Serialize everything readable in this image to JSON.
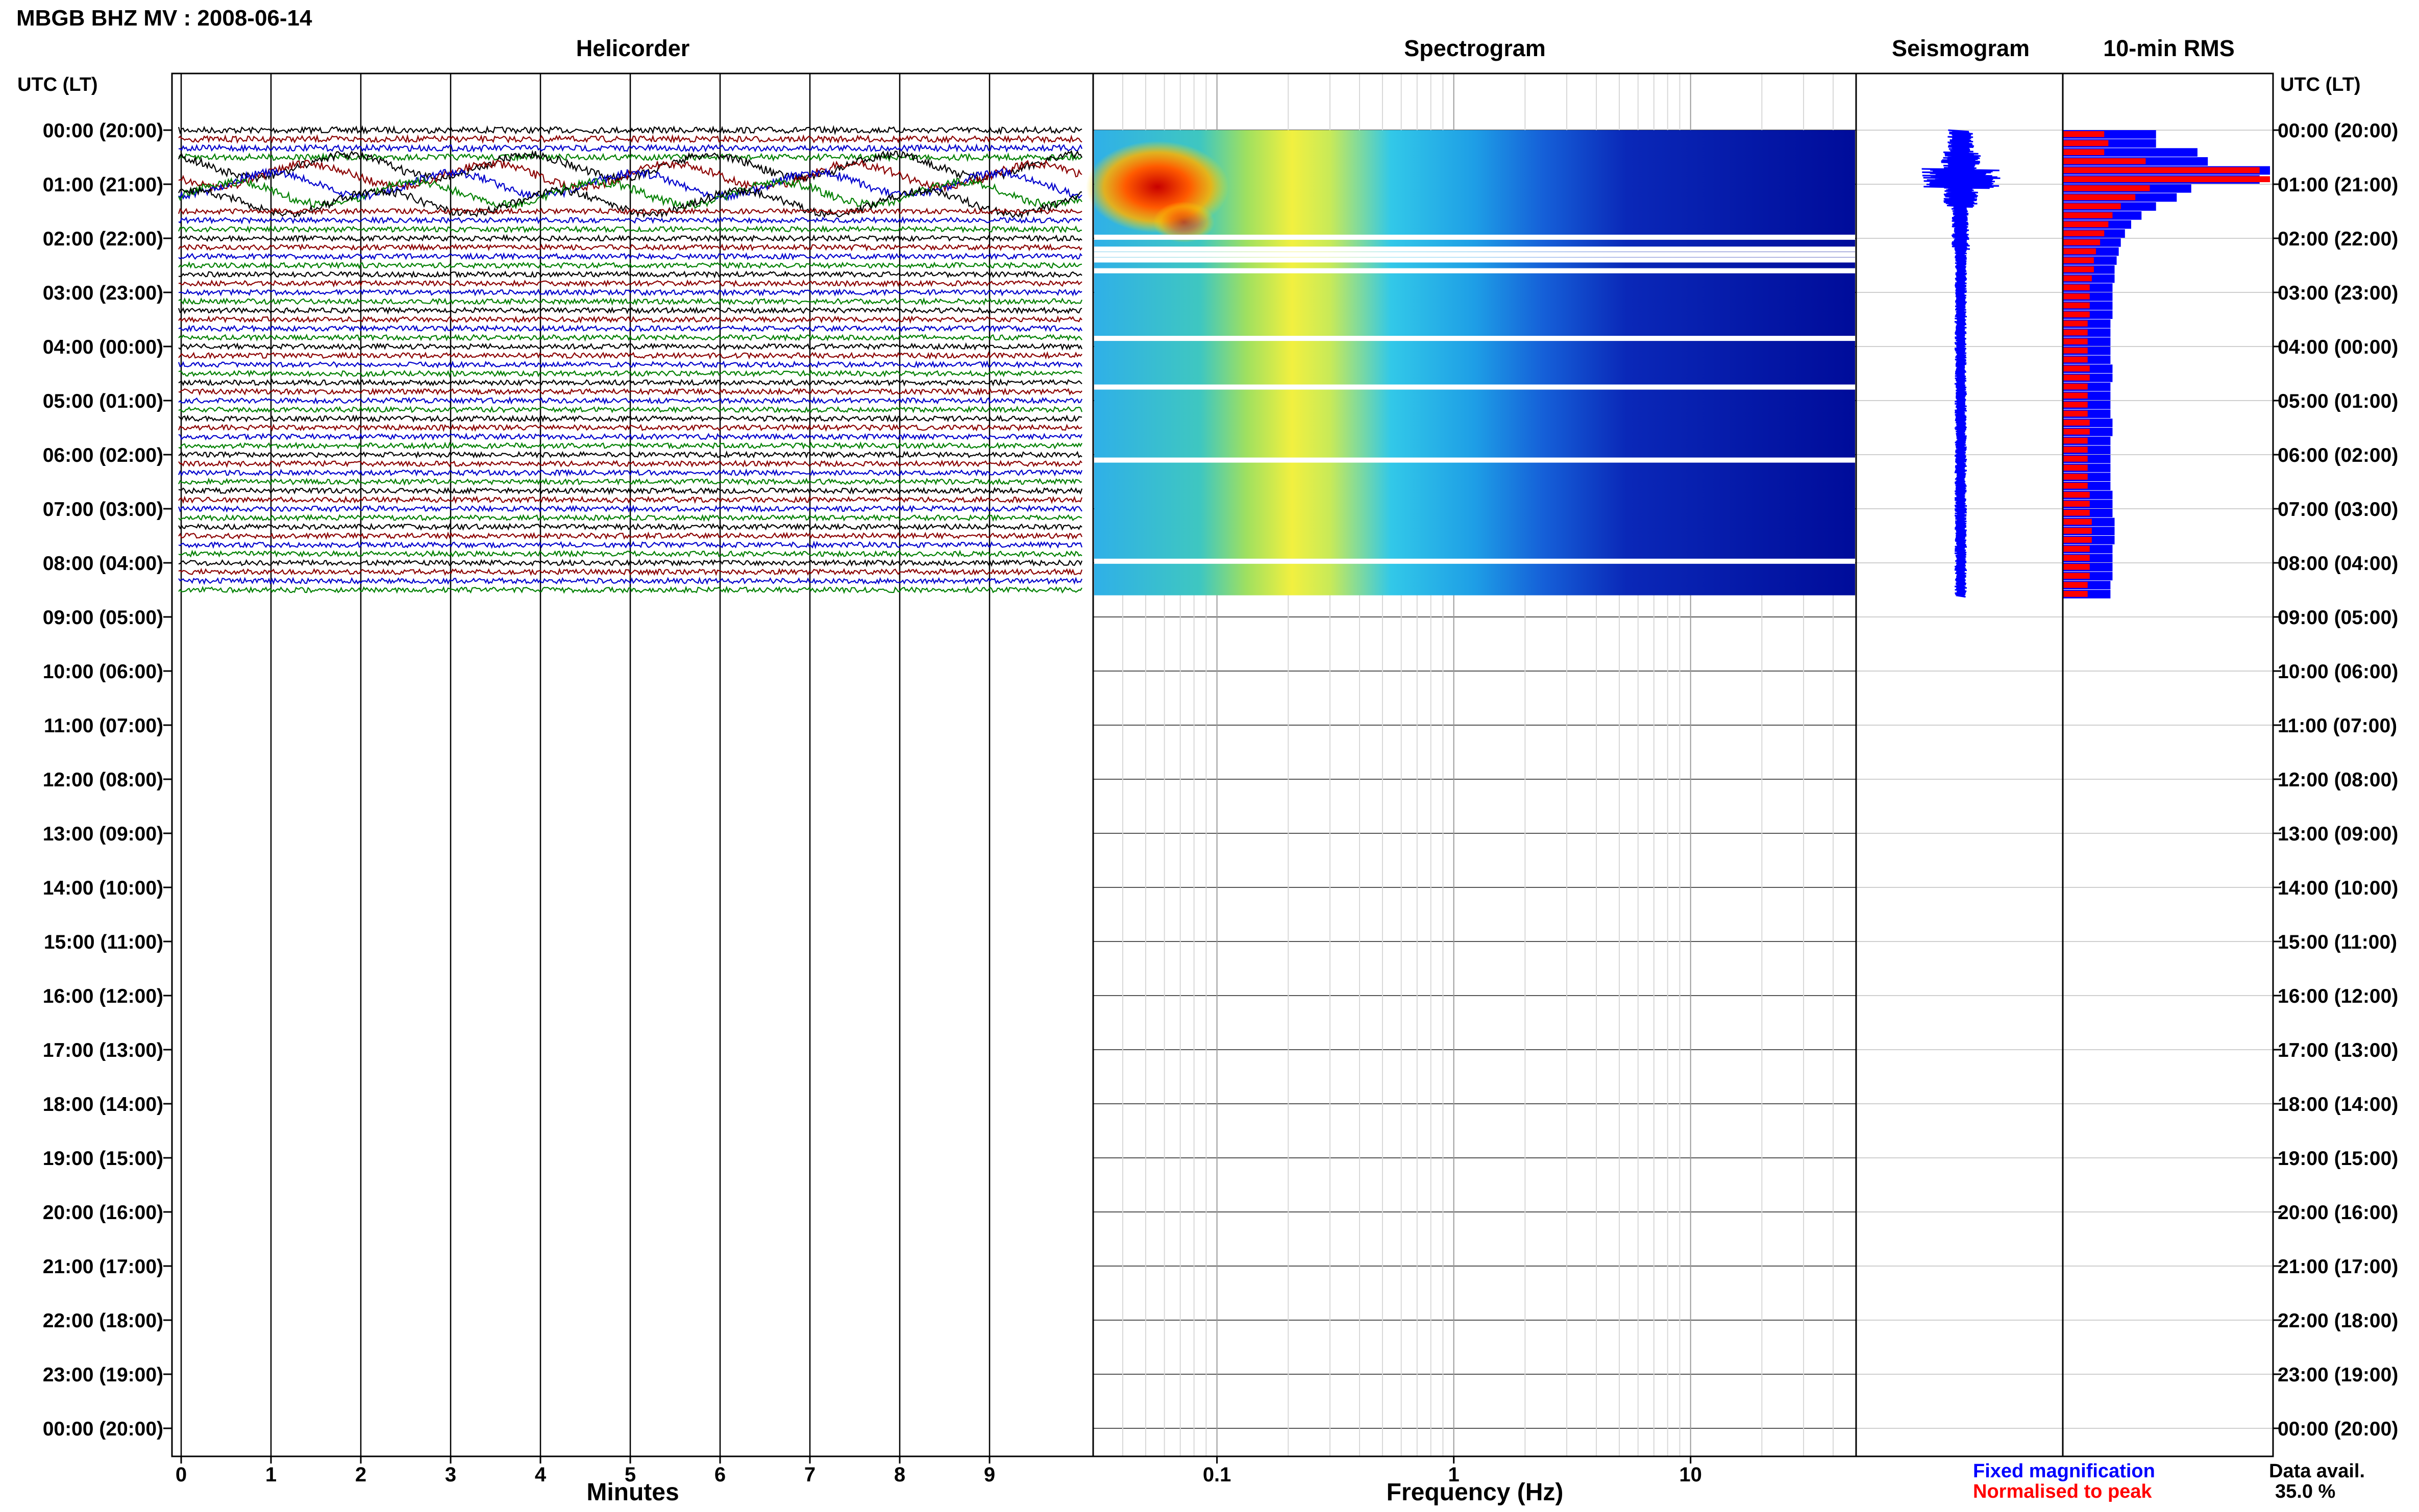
{
  "header": {
    "station_title": "MBGB BHZ MV : 2008-06-14",
    "utc_lt_label_left": "UTC (LT)",
    "utc_lt_label_right": "UTC (LT)"
  },
  "panels": {
    "helicorder": "Helicorder",
    "spectrogram": "Spectrogram",
    "seismogram": "Seismogram",
    "rms": "10-min RMS"
  },
  "axes": {
    "minutes_label": "Minutes",
    "frequency_label": "Frequency (Hz)",
    "minute_ticks": [
      "0",
      "1",
      "2",
      "3",
      "4",
      "5",
      "6",
      "7",
      "8",
      "9"
    ],
    "frequency_ticks": [
      "0.1",
      "1",
      "10"
    ]
  },
  "time_labels": [
    "00:00 (20:00)",
    "01:00 (21:00)",
    "02:00 (22:00)",
    "03:00 (23:00)",
    "04:00 (00:00)",
    "05:00 (01:00)",
    "06:00 (02:00)",
    "07:00 (03:00)",
    "08:00 (04:00)",
    "09:00 (05:00)",
    "10:00 (06:00)",
    "11:00 (07:00)",
    "12:00 (08:00)",
    "13:00 (09:00)",
    "14:00 (10:00)",
    "15:00 (11:00)",
    "16:00 (12:00)",
    "17:00 (13:00)",
    "18:00 (14:00)",
    "19:00 (15:00)",
    "20:00 (16:00)",
    "21:00 (17:00)",
    "22:00 (18:00)",
    "23:00 (19:00)",
    "00:00 (20:00)"
  ],
  "legend": {
    "fixed": "Fixed magnification",
    "normalised": "Normalised to peak",
    "fixed_color": "#0000ff",
    "normalised_color": "#ff0000"
  },
  "data_availability": {
    "label": "Data avail.",
    "value": "35.0 %"
  },
  "trace_colors": [
    "#000000",
    "#8b0000",
    "#0000cd",
    "#008000"
  ],
  "chart_data": {
    "type": "heatmap",
    "data_hours": 8.6,
    "helicorder_x_range_minutes": [
      0,
      10
    ],
    "spectrogram_freq_range_hz": [
      0.03,
      50
    ],
    "spectrogram_log_scale": true,
    "spectrogram_gaps_hours": [
      1.98,
      2.2,
      2.3,
      2.4,
      2.6,
      3.85,
      4.75,
      6.1,
      7.97
    ],
    "rms_fixed_relative": [
      0.45,
      0.45,
      0.65,
      0.7,
      1.0,
      0.95,
      0.62,
      0.55,
      0.45,
      0.38,
      0.33,
      0.3,
      0.28,
      0.27,
      0.26,
      0.25,
      0.25,
      0.24,
      0.24,
      0.24,
      0.24,
      0.23,
      0.23,
      0.23,
      0.23,
      0.23,
      0.24,
      0.24,
      0.23,
      0.23,
      0.23,
      0.23,
      0.24,
      0.24,
      0.23,
      0.23,
      0.23,
      0.23,
      0.23,
      0.23,
      0.24,
      0.24,
      0.24,
      0.25,
      0.25,
      0.25,
      0.24,
      0.24,
      0.24,
      0.24,
      0.23,
      0.23
    ],
    "rms_normalised_relative": [
      0.2,
      0.22,
      0.2,
      0.4,
      0.95,
      1.0,
      0.42,
      0.35,
      0.28,
      0.24,
      0.22,
      0.2,
      0.18,
      0.16,
      0.15,
      0.15,
      0.14,
      0.13,
      0.13,
      0.13,
      0.13,
      0.12,
      0.12,
      0.12,
      0.12,
      0.12,
      0.13,
      0.13,
      0.12,
      0.12,
      0.12,
      0.12,
      0.13,
      0.13,
      0.12,
      0.12,
      0.12,
      0.12,
      0.12,
      0.12,
      0.13,
      0.13,
      0.13,
      0.14,
      0.14,
      0.14,
      0.13,
      0.13,
      0.13,
      0.13,
      0.12,
      0.12
    ]
  }
}
